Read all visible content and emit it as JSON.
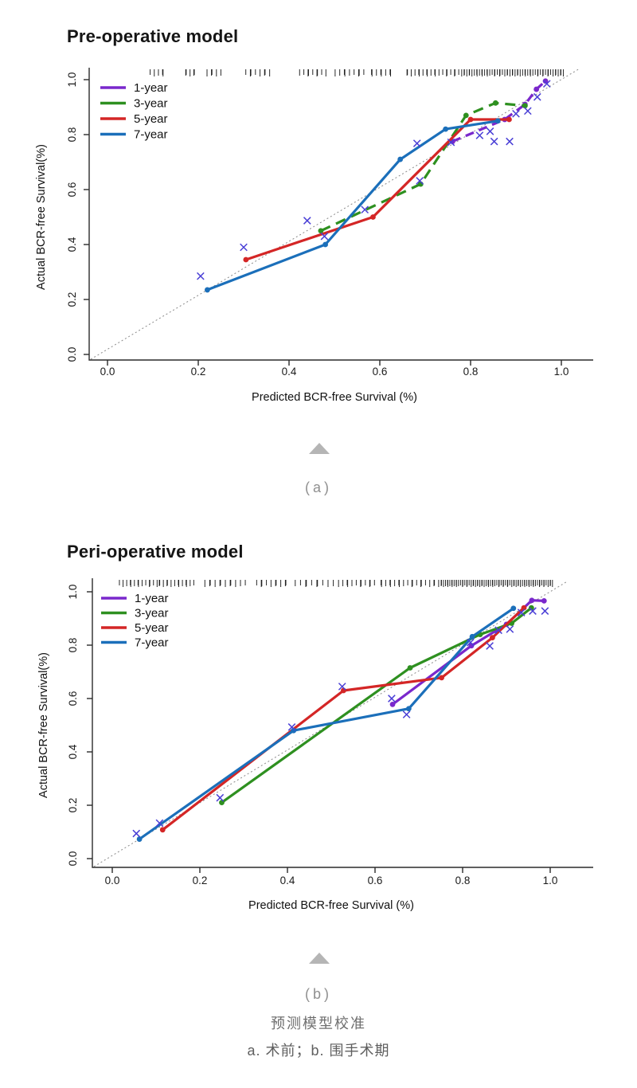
{
  "page": {
    "background_color": "#ffffff"
  },
  "colors": {
    "x_mark": "#4a3fd6",
    "reference_line": "#8a8a8a",
    "axis": "#2a2a2a",
    "rug": "#111111",
    "title_text": "#151515",
    "panel_label_gray": "#8f8f8f",
    "caption_gray": "#666666",
    "triangle_gray": "#b5b5b5"
  },
  "figure": {
    "panel_a_label": "(a)",
    "panel_b_label": "(b)",
    "caption_line1": "预测模型校准",
    "caption_line2": "a. 术前；b. 围手术期"
  },
  "chart_data": [
    {
      "id": "pre-operative",
      "type": "line",
      "title": "Pre-operative model",
      "xlabel": "Predicted BCR-free Survival (%)",
      "ylabel": "Actual BCR-free Survival(%)",
      "xlim": [
        0,
        1
      ],
      "ylim": [
        0,
        1
      ],
      "xtick_labels": [
        "0.0",
        "0.2",
        "0.4",
        "0.6",
        "0.8",
        "1.0"
      ],
      "ytick_labels": [
        "0.0",
        "0.2",
        "0.4",
        "0.6",
        "0.8",
        "1.0"
      ],
      "grid": false,
      "legend_position": "top-left",
      "reference_line": "dotted 45-degree ideal calibration line",
      "series": [
        {
          "name": "1-year",
          "color": "#7a28cc",
          "dash": "11,7",
          "points": [
            [
              0.76,
              0.775
            ],
            [
              0.875,
              0.855
            ],
            [
              0.92,
              0.91
            ],
            [
              0.945,
              0.965
            ],
            [
              0.965,
              0.995
            ]
          ]
        },
        {
          "name": "3-year",
          "color": "#2e9020",
          "dash": "13,8",
          "points": [
            [
              0.47,
              0.45
            ],
            [
              0.69,
              0.62
            ],
            [
              0.79,
              0.87
            ],
            [
              0.855,
              0.915
            ],
            [
              0.92,
              0.905
            ]
          ]
        },
        {
          "name": "5-year",
          "color": "#d42626",
          "dash": null,
          "points": [
            [
              0.305,
              0.345
            ],
            [
              0.585,
              0.5
            ],
            [
              0.8,
              0.855
            ],
            [
              0.885,
              0.855
            ]
          ]
        },
        {
          "name": "7-year",
          "color": "#1b6fba",
          "dash": null,
          "points": [
            [
              0.22,
              0.235
            ],
            [
              0.48,
              0.4
            ],
            [
              0.645,
              0.71
            ],
            [
              0.745,
              0.82
            ],
            [
              0.86,
              0.85
            ]
          ]
        }
      ],
      "x_marks_note": "blue-violet X = optimism-corrected estimate near each group",
      "x_marks": [
        [
          0.205,
          0.285
        ],
        [
          0.3,
          0.39
        ],
        [
          0.44,
          0.487
        ],
        [
          0.478,
          0.43
        ],
        [
          0.567,
          0.527
        ],
        [
          0.688,
          0.632
        ],
        [
          0.682,
          0.768
        ],
        [
          0.757,
          0.772
        ],
        [
          0.82,
          0.797
        ],
        [
          0.843,
          0.812
        ],
        [
          0.852,
          0.775
        ],
        [
          0.886,
          0.775
        ],
        [
          0.9,
          0.876
        ],
        [
          0.926,
          0.886
        ],
        [
          0.947,
          0.937
        ],
        [
          0.968,
          0.985
        ]
      ],
      "rug_density_clusters": [
        {
          "from": 0.098,
          "to": 0.125,
          "n": 5
        },
        {
          "from": 0.17,
          "to": 0.195,
          "n": 5
        },
        {
          "from": 0.218,
          "to": 0.247,
          "n": 5
        },
        {
          "from": 0.305,
          "to": 0.357,
          "n": 8
        },
        {
          "from": 0.425,
          "to": 0.48,
          "n": 9
        },
        {
          "from": 0.505,
          "to": 0.565,
          "n": 9
        },
        {
          "from": 0.578,
          "to": 0.628,
          "n": 8
        },
        {
          "from": 0.658,
          "to": 0.775,
          "n": 20
        },
        {
          "from": 0.78,
          "to": 1.005,
          "n": 58
        }
      ]
    },
    {
      "id": "peri-operative",
      "type": "line",
      "title": "Peri-operative model",
      "xlabel": "Predicted BCR-free Survival (%)",
      "ylabel": "Actual BCR-free Survival(%)",
      "xlim": [
        0,
        1
      ],
      "ylim": [
        0,
        1
      ],
      "xtick_labels": [
        "0.0",
        "0.2",
        "0.4",
        "0.6",
        "0.8",
        "1.0"
      ],
      "ytick_labels": [
        "0.0",
        "0.2",
        "0.4",
        "0.6",
        "0.8",
        "1.0"
      ],
      "grid": false,
      "legend_position": "top-left",
      "reference_line": "dotted 45-degree ideal calibration line",
      "series": [
        {
          "name": "1-year",
          "color": "#7a28cc",
          "dash": null,
          "points": [
            [
              0.64,
              0.578
            ],
            [
              0.82,
              0.798
            ],
            [
              0.9,
              0.878
            ],
            [
              0.958,
              0.968
            ],
            [
              0.986,
              0.966
            ]
          ]
        },
        {
          "name": "3-year",
          "color": "#2e9020",
          "dash": null,
          "points": [
            [
              0.25,
              0.21
            ],
            [
              0.68,
              0.715
            ],
            [
              0.84,
              0.84
            ],
            [
              0.912,
              0.882
            ],
            [
              0.957,
              0.94
            ]
          ]
        },
        {
          "name": "5-year",
          "color": "#d42626",
          "dash": null,
          "points": [
            [
              0.115,
              0.108
            ],
            [
              0.528,
              0.63
            ],
            [
              0.752,
              0.678
            ],
            [
              0.868,
              0.828
            ],
            [
              0.94,
              0.94
            ]
          ]
        },
        {
          "name": "7-year",
          "color": "#1b6fba",
          "dash": null,
          "points": [
            [
              0.062,
              0.073
            ],
            [
              0.414,
              0.48
            ],
            [
              0.677,
              0.562
            ],
            [
              0.822,
              0.832
            ],
            [
              0.916,
              0.938
            ]
          ]
        }
      ],
      "x_marks_note": "blue-violet X = optimism-corrected estimate near each group",
      "x_marks": [
        [
          0.055,
          0.094
        ],
        [
          0.108,
          0.133
        ],
        [
          0.246,
          0.228
        ],
        [
          0.41,
          0.493
        ],
        [
          0.525,
          0.645
        ],
        [
          0.638,
          0.6
        ],
        [
          0.672,
          0.54
        ],
        [
          0.818,
          0.81
        ],
        [
          0.862,
          0.797
        ],
        [
          0.882,
          0.856
        ],
        [
          0.908,
          0.86
        ],
        [
          0.934,
          0.922
        ],
        [
          0.96,
          0.928
        ],
        [
          0.988,
          0.928
        ]
      ],
      "rug_density_clusters": [
        {
          "from": 0.02,
          "to": 0.1,
          "n": 14
        },
        {
          "from": 0.105,
          "to": 0.185,
          "n": 14
        },
        {
          "from": 0.21,
          "to": 0.3,
          "n": 12
        },
        {
          "from": 0.33,
          "to": 0.4,
          "n": 10
        },
        {
          "from": 0.42,
          "to": 0.5,
          "n": 10
        },
        {
          "from": 0.52,
          "to": 0.6,
          "n": 12
        },
        {
          "from": 0.61,
          "to": 0.745,
          "n": 20
        },
        {
          "from": 0.75,
          "to": 1.005,
          "n": 75
        }
      ]
    }
  ]
}
